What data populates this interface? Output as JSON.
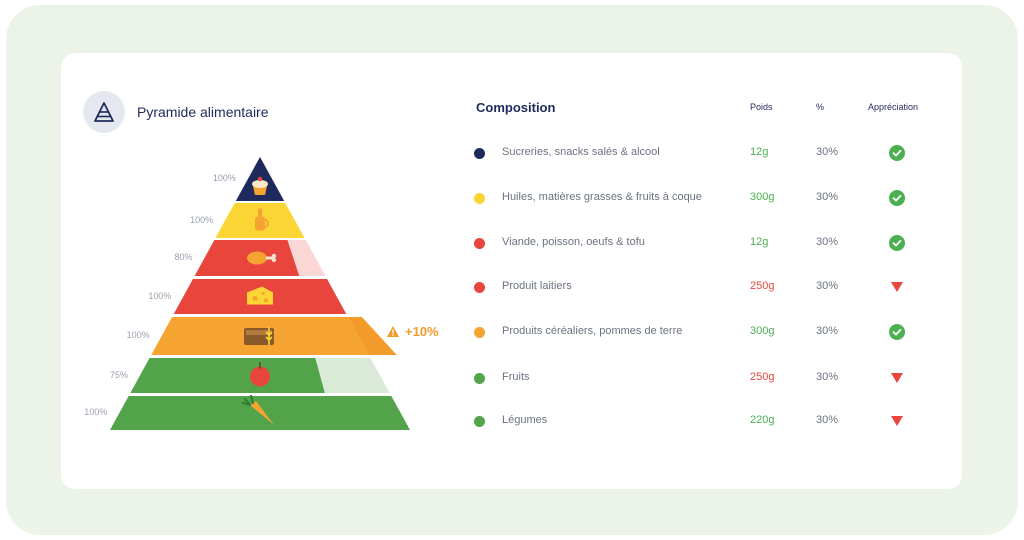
{
  "panel": {
    "title": "Pyramide alimentaire",
    "logo_icon": "pyramid-icon"
  },
  "pyramid": {
    "levels": [
      {
        "percent_label": "100%",
        "fill": 1.0,
        "color": "#1f2a5c",
        "icon": "cupcake-icon"
      },
      {
        "percent_label": "100%",
        "fill": 1.0,
        "color": "#fbd533",
        "icon": "oil-bottle-icon"
      },
      {
        "percent_label": "80%",
        "fill": 0.8,
        "color": "#e8453c",
        "icon": "chicken-leg-icon"
      },
      {
        "percent_label": "100%",
        "fill": 1.0,
        "color": "#e8453c",
        "icon": "cheese-icon"
      },
      {
        "percent_label": "100%",
        "fill": 1.0,
        "color": "#f5a331",
        "icon": "bread-icon"
      },
      {
        "percent_label": "75%",
        "fill": 0.75,
        "color": "#52a34a",
        "icon": "apple-icon"
      },
      {
        "percent_label": "100%",
        "fill": 1.0,
        "color": "#52a34a",
        "icon": "carrot-icon"
      }
    ],
    "excess_warning": {
      "label": "+10%",
      "icon": "warning-icon",
      "color": "#f29b2b"
    }
  },
  "composition": {
    "title": "Composition",
    "columns": {
      "weight": "Poids",
      "percent": "%",
      "rating": "Appréciation"
    },
    "rows": [
      {
        "label": "Sucreries, snacks salés & alcool",
        "dot_color": "#1f2a5c",
        "weight": "12g",
        "weight_color": "#4caf50",
        "percent": "30%",
        "status": "ok"
      },
      {
        "label": "Huiles, matières grasses & fruits à coque",
        "dot_color": "#fbd533",
        "weight": "300g",
        "weight_color": "#4caf50",
        "percent": "30%",
        "status": "ok"
      },
      {
        "label": "Viande, poisson, oeufs & tofu",
        "dot_color": "#e8453c",
        "weight": "12g",
        "weight_color": "#4caf50",
        "percent": "30%",
        "status": "ok"
      },
      {
        "label": "Produit laitiers",
        "dot_color": "#e8453c",
        "weight": "250g",
        "weight_color": "#e8453c",
        "percent": "30%",
        "status": "low"
      },
      {
        "label": "Produits céréaliers, pommes de terre",
        "dot_color": "#f5a331",
        "weight": "300g",
        "weight_color": "#4caf50",
        "percent": "30%",
        "status": "ok"
      },
      {
        "label": "Fruits",
        "dot_color": "#52a34a",
        "weight": "250g",
        "weight_color": "#e8453c",
        "percent": "30%",
        "status": "low"
      },
      {
        "label": "Légumes",
        "dot_color": "#52a34a",
        "weight": "220g",
        "weight_color": "#4caf50",
        "percent": "30%",
        "status": "low"
      }
    ]
  }
}
